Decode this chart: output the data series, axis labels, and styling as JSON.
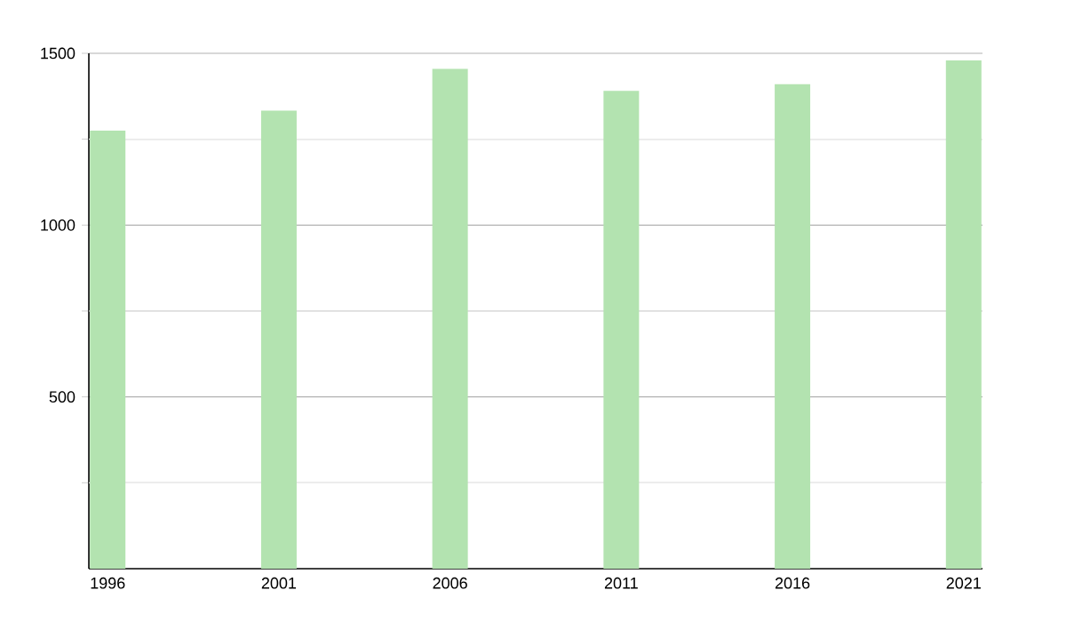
{
  "chart_data": {
    "type": "bar",
    "categories": [
      "1996",
      "2001",
      "2006",
      "2011",
      "2016",
      "2021"
    ],
    "values": [
      1275,
      1333,
      1455,
      1391,
      1410,
      1479
    ],
    "color": "#b3e3b0",
    "ylim": [
      0,
      1500
    ],
    "yticks": [
      {
        "value": 250,
        "label": null
      },
      500,
      {
        "value": 750,
        "label": null
      },
      1000,
      {
        "value": 1250,
        "label": null
      },
      1500
    ],
    "grid": "y"
  }
}
